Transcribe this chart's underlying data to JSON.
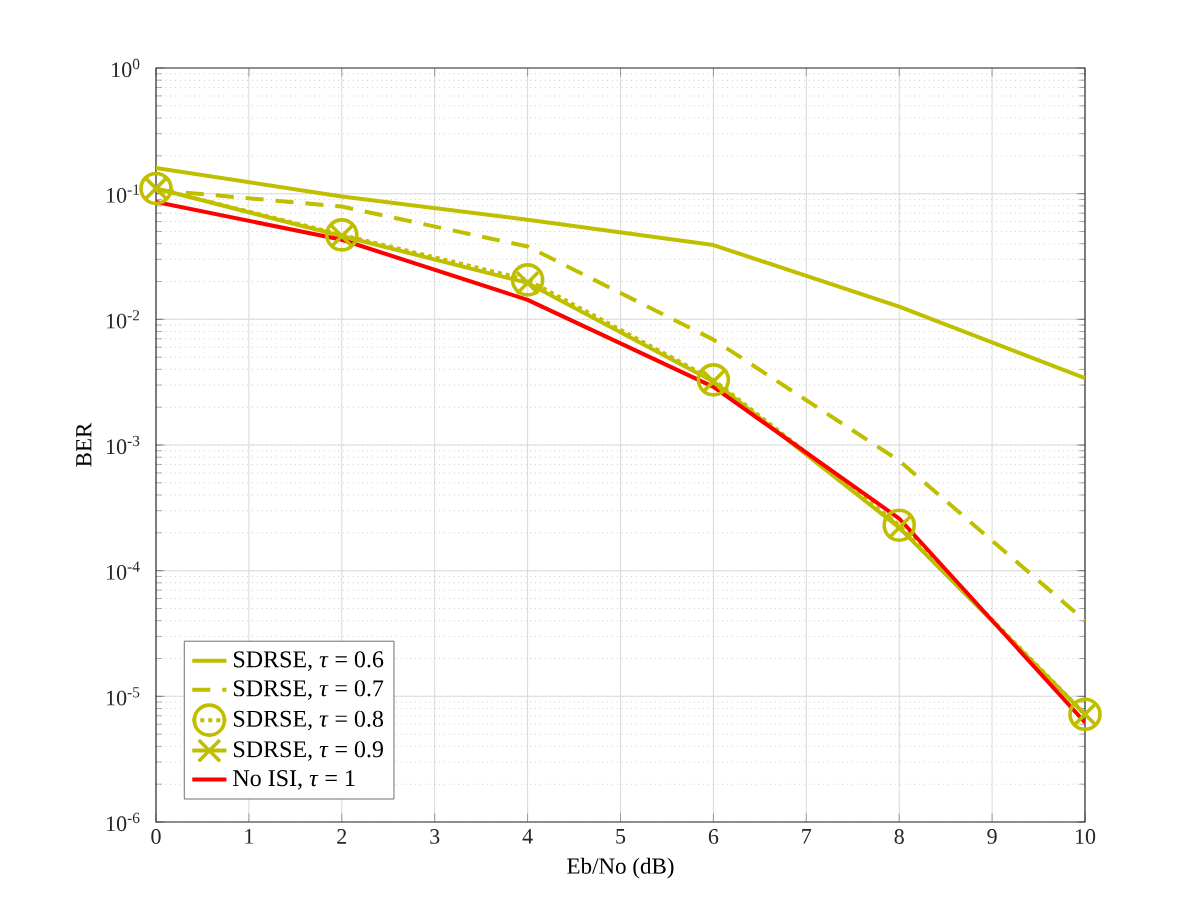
{
  "chart_data": {
    "type": "line",
    "xlabel": "Eb/No (dB)",
    "ylabel": "BER",
    "x": [
      0,
      2,
      4,
      6,
      8,
      10
    ],
    "series": [
      {
        "name": "SDRSE, *τ* = 0.6",
        "color": "#bfbf00",
        "line_style": "solid",
        "marker": "none",
        "values": [
          0.16,
          0.095,
          0.062,
          0.039,
          0.0126,
          0.0034
        ]
      },
      {
        "name": "SDRSE, *τ* = 0.7",
        "color": "#bfbf00",
        "line_style": "dashed",
        "marker": "none",
        "values": [
          0.107,
          0.079,
          0.038,
          0.0069,
          0.00075,
          4e-05
        ]
      },
      {
        "name": "SDRSE, *τ* = 0.8",
        "color": "#bfbf00",
        "line_style": "dotted",
        "marker": "circle",
        "values": [
          0.11,
          0.047,
          0.0206,
          0.0033,
          0.00023,
          7.2e-06
        ]
      },
      {
        "name": "SDRSE, *τ* = 0.9",
        "color": "#bfbf00",
        "line_style": "solid",
        "marker": "cross",
        "values": [
          0.11,
          0.046,
          0.0195,
          0.0032,
          0.00022,
          7.2e-06
        ]
      },
      {
        "name": "No ISI, *τ* = 1",
        "color": "#ff0000",
        "line_style": "solid",
        "marker": "none",
        "values": [
          0.086,
          0.043,
          0.0143,
          0.0029,
          0.00026,
          6.2e-06
        ]
      }
    ],
    "xlim": [
      0,
      10
    ],
    "xticks": [
      0,
      1,
      2,
      3,
      4,
      5,
      6,
      7,
      8,
      9,
      10
    ],
    "ylim": [
      1e-06,
      1
    ],
    "yticks": [
      {
        "value": 1e-06,
        "label": "10$^{-6}$"
      },
      {
        "value": 1e-05,
        "label": "10$^{-5}$"
      },
      {
        "value": 0.0001,
        "label": "10$^{-4}$"
      },
      {
        "value": 0.001,
        "label": "10$^{-3}$"
      },
      {
        "value": 0.01,
        "label": "10$^{-2}$"
      },
      {
        "value": 0.1,
        "label": "10$^{-1}$"
      },
      {
        "value": 1,
        "label": "10$^{0}$"
      }
    ],
    "log": "y",
    "grid": true,
    "legend": "bottom left"
  }
}
